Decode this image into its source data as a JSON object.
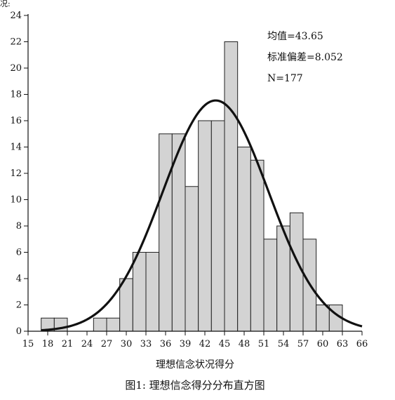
{
  "chart_data": {
    "type": "bar",
    "title": "",
    "caption": "图1: 理想信念得分分布直方图",
    "xlabel": "理想信念状况得分",
    "ylabel": "",
    "corner_text": "况:",
    "xlim": [
      15,
      66
    ],
    "ylim": [
      0,
      24
    ],
    "x_ticks": [
      "15",
      "18",
      "21",
      "24",
      "27",
      "30",
      "33",
      "36",
      "39",
      "42",
      "45",
      "48",
      "51",
      "54",
      "57",
      "60",
      "63",
      "66"
    ],
    "y_ticks": [
      "0",
      "2",
      "4",
      "6",
      "8",
      "10",
      "12",
      "14",
      "16",
      "18",
      "20",
      "22",
      "24"
    ],
    "bin_edges": [
      17,
      19,
      21,
      23,
      25,
      27,
      29,
      31,
      33,
      35,
      37,
      39,
      41,
      43,
      45,
      47,
      49,
      51,
      53,
      55,
      57,
      59,
      61,
      63
    ],
    "values": [
      1,
      1,
      0,
      0,
      1,
      1,
      4,
      6,
      6,
      15,
      15,
      11,
      16,
      16,
      22,
      14,
      13,
      7,
      8,
      9,
      7,
      2,
      2
    ],
    "normal_curve": {
      "mean": 43.65,
      "std": 8.052,
      "n": 177,
      "bin_width": 2
    },
    "stats": {
      "mean_label": "均值=43.65",
      "std_label": "标准偏差=8.052",
      "n_label": "N=177"
    },
    "bar_color": "#d3d3d3",
    "bar_edge_color": "#222222",
    "curve_color": "#111111",
    "grid": false,
    "legend": "none"
  }
}
